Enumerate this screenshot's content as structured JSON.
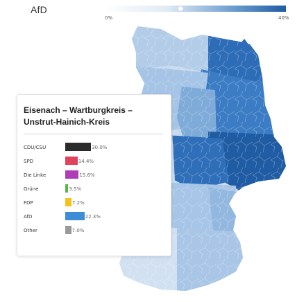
{
  "legend": {
    "party": "AfD",
    "scale_min": "0%",
    "scale_max": "40%",
    "slider_value": 0.42,
    "color_low": "#eef3fa",
    "color_high": "#1f5ca3"
  },
  "region": {
    "title": "Eisenach – Wartburgkreis – Unstrut-Hainich-Kreis",
    "rows": [
      {
        "party": "CDU/CSU",
        "value": 30.0,
        "label": "30.0%",
        "color": "#2b2b2b"
      },
      {
        "party": "SPD",
        "value": 14.4,
        "label": "14.4%",
        "color": "#e0435c"
      },
      {
        "party": "Die Linke",
        "value": 15.6,
        "label": "15.6%",
        "color": "#b03bb8"
      },
      {
        "party": "Grüne",
        "value": 3.5,
        "label": "3.5%",
        "color": "#55b846"
      },
      {
        "party": "FDP",
        "value": 7.2,
        "label": "7.2%",
        "color": "#f3c31c"
      },
      {
        "party": "AfD",
        "value": 22.3,
        "label": "22.3%",
        "color": "#3d8ed6"
      },
      {
        "party": "Other",
        "value": 7.0,
        "label": "7.0%",
        "color": "#999999"
      }
    ]
  }
}
